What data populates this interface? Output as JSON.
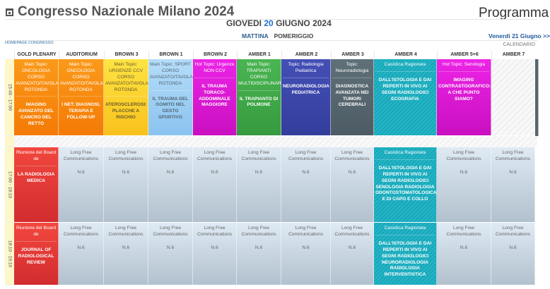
{
  "header": {
    "title": "Congresso Nazionale Milano 2024",
    "title_icon": "calendar-icon",
    "right_title": "Programma",
    "day_prefix": "GIOVEDI",
    "day_number": "20",
    "day_suffix": "GIUGNO 2024",
    "tabs": [
      "MATTINA",
      "POMERIGGIO"
    ],
    "next_day": "Venerdì 21 Giugno >>",
    "homepage_link": "HOMEPAGE CONGRESSO",
    "calendar_link": "CALENDARIO"
  },
  "rooms": [
    "GOLD PLENARY",
    "AUDITORIUM",
    "BROWN 3",
    "BROWN 1",
    "BROWN 2",
    "AMBER 1",
    "AMBER 2",
    "AMBER 3",
    "AMBER 4",
    "AMBER 5+6",
    "AMBER 7"
  ],
  "colors": {
    "orange": "#f78a0c",
    "yellow": "#fbd52a",
    "lightblue": "#9fd0f3",
    "magenta": "#e21ad9",
    "green": "#3fa648",
    "indigo": "#3a45a8",
    "slate": "#56666e",
    "teal": "#1fb0c2",
    "red": "#e3373a",
    "grey": "#cfdbe6"
  },
  "slots": [
    {
      "time": "15:40 - 17:00",
      "cells": [
        {
          "color": "orange",
          "topic": "Main Topic: ONCOLOGIA CORSO AVANZATO/TAVOLA ROTONDA",
          "title": "IMAGING AVANZATO DEL CANCRO DEL RETTO"
        },
        {
          "color": "orange",
          "topic": "Main Topic: ONCOLOGIA CORSO AVANZATO/TAVOLA ROTONDA",
          "title": "I NET: DIAGNOSI, TERAPIA E FOLLOW-UP"
        },
        {
          "color": "yellow",
          "topic": "Main Topic: URGENZE CCV CORSO AVANZATO/TAVOLA ROTONDA",
          "title": "ATEROSCLEROSI: PLACCHE A RISCHIO"
        },
        {
          "color": "lightblue",
          "topic": "Main Topic: SPORT CORSO AVANZATO/TAVOLA ROTONDA",
          "title": "IL TRAUMA DEL GOMITO NEL GESTO SPORTIVO"
        },
        {
          "color": "magenta",
          "topic": "Hot Topic: Urgenze NON CCV",
          "title": "IL TRAUMA TORACO-ADDOMINALE MAGGIORE"
        },
        {
          "color": "green",
          "topic": "Main Topic: TRAPIANTI CORSO MULTIDISCIPLINARE",
          "title": "IL TRAPIANTO DI POLMONE"
        },
        {
          "color": "indigo",
          "topic": "Topic: Radiologia Pediatrica",
          "title": "NEURORADIOLOGIA PEDIATRICA"
        },
        {
          "color": "slate",
          "topic": "Topic: Neuroradiologia",
          "title": "DIAGNOSTICA AVANZATA NEI TUMORI CEREBRALI"
        },
        {
          "color": "teal",
          "topic": "Casistica Ragionata",
          "title": "DALL'ISTOLOGIA E DAI REPERTI IN VIVO AI SEGNI RADIOLOGICI ECOGRAFIA"
        },
        {
          "color": "magenta",
          "topic": "Hot Topic: Senologia",
          "title": "IMAGING CONTRASTOGRAFICO: A CHE PUNTO SIAMO?"
        },
        {
          "color": "empty"
        }
      ]
    },
    {
      "time": "17:00 - 18:10",
      "cells": [
        {
          "color": "red",
          "topic": "Riunione del Board de",
          "title": "LA RADIOLOGIA MEDICA"
        },
        {
          "color": "grey",
          "topic": "Long Free Communications",
          "title": "N.6"
        },
        {
          "color": "grey",
          "topic": "Long Free Communications",
          "title": "N.6"
        },
        {
          "color": "grey",
          "topic": "Long Free Communications",
          "title": "N.6"
        },
        {
          "color": "grey",
          "topic": "Long Free Communications",
          "title": "N.6"
        },
        {
          "color": "grey",
          "topic": "Long Free Communications",
          "title": "N.6"
        },
        {
          "color": "grey",
          "topic": "Long Free Communications",
          "title": "N.6"
        },
        {
          "color": "grey",
          "topic": "Long Free Communications",
          "title": "N.6"
        },
        {
          "color": "teal",
          "topic": "Casistica Ragionata",
          "title": "DALL'ISTOLOGIA E DAI REPERTI IN VIVO AI SEGNI RADIOLOGICI SENOLOGIA RADIOLOGIA ODONTOSTOMATOLOGICA E DI CAPO E COLLO"
        },
        {
          "color": "grey",
          "topic": "Long Free Communications",
          "title": "N.6"
        },
        {
          "color": "grey",
          "topic": "Long Free Communications",
          "title": "N.6"
        }
      ]
    },
    {
      "time": "18:10 - 19:10",
      "cells": [
        {
          "color": "red",
          "topic": "Riunione del Board de",
          "title": "JOURNAL OF RADIOLOGICAL REVIEW"
        },
        {
          "color": "grey",
          "topic": "Long Free Communications",
          "title": "N.6"
        },
        {
          "color": "grey",
          "topic": "Long Free Communications",
          "title": "N.6"
        },
        {
          "color": "grey",
          "topic": "Long Free Communications",
          "title": "N.6"
        },
        {
          "color": "grey",
          "topic": "Long Free Communications",
          "title": "N.6"
        },
        {
          "color": "grey",
          "topic": "Long Free Communications",
          "title": "N.6"
        },
        {
          "color": "grey",
          "topic": "Long Free Communications",
          "title": "N.6"
        },
        {
          "color": "grey",
          "topic": "Long Free Communications",
          "title": "N.6"
        },
        {
          "color": "teal",
          "topic": "Casistica Ragionata",
          "title": "DALL'ISTOLOGIA E DAI REPERTI IN VIVO AI SEGNI RADIOLOGICI NEURORADIOLOGIA RADIOLOGIA INTERVENTISTICA"
        },
        {
          "color": "grey",
          "topic": "Long Free Communications",
          "title": "N.6"
        },
        {
          "color": "grey",
          "topic": "Long Free Communications",
          "title": "N.6"
        }
      ]
    }
  ]
}
